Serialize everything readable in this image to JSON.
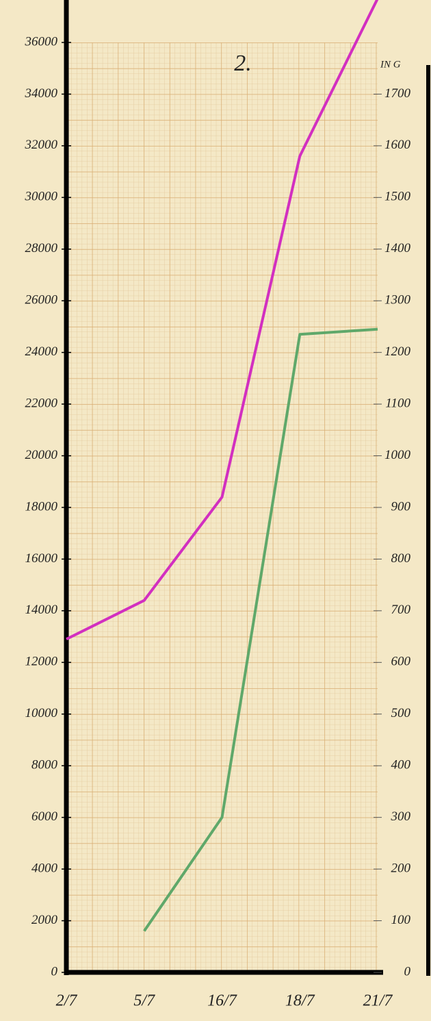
{
  "chart_data": {
    "type": "line",
    "title": "2.",
    "y2_label": "IN G",
    "categories": [
      "2/7",
      "5/7",
      "16/7",
      "18/7",
      "21/7"
    ],
    "series": [
      {
        "name": null,
        "color": "#d22fc0",
        "values": [
          12900,
          14400,
          18400,
          31600,
          37700
        ]
      },
      {
        "name": null,
        "color": "#5fa86a",
        "axis": "y2",
        "values": [
          null,
          80,
          300,
          1235,
          1245
        ]
      }
    ],
    "ylim": [
      0,
      36000
    ],
    "yticks": [
      0,
      2000,
      4000,
      6000,
      8000,
      10000,
      12000,
      14000,
      16000,
      18000,
      20000,
      22000,
      24000,
      26000,
      28000,
      30000,
      32000,
      34000,
      36000
    ],
    "y2lim": [
      0,
      1800
    ],
    "y2ticks": [
      0,
      100,
      200,
      300,
      400,
      500,
      600,
      700,
      800,
      900,
      1000,
      1100,
      1200,
      1300,
      1400,
      1500,
      1600,
      1700
    ],
    "grid": true
  }
}
